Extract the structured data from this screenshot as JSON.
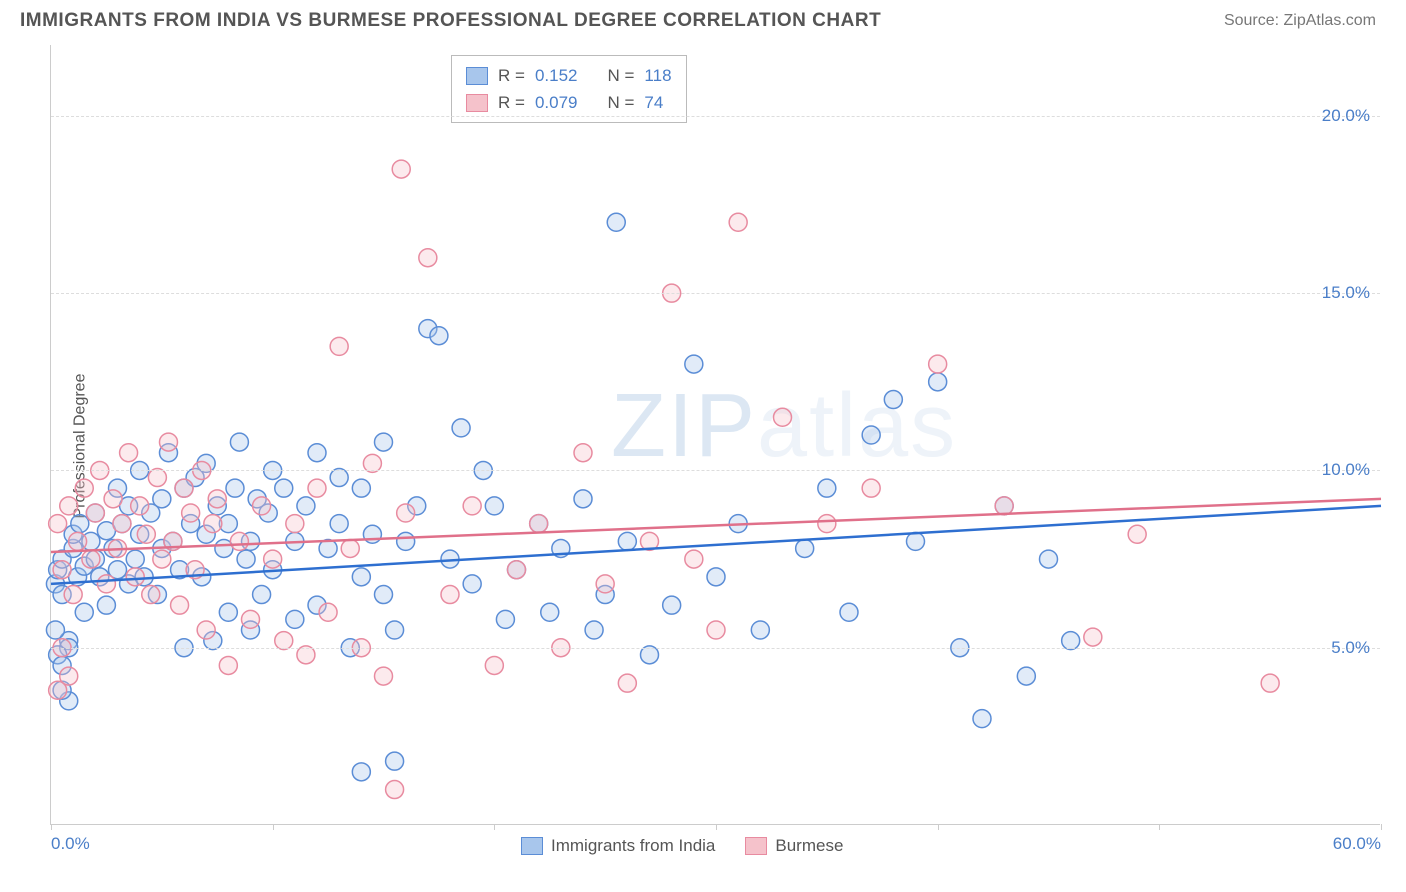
{
  "title": "IMMIGRANTS FROM INDIA VS BURMESE PROFESSIONAL DEGREE CORRELATION CHART",
  "source": "Source: ZipAtlas.com",
  "watermark": "ZIPatlas",
  "ylabel": "Professional Degree",
  "chart": {
    "type": "scatter",
    "xlim": [
      0,
      60
    ],
    "ylim": [
      0,
      22
    ],
    "grid_color": "#dddddd",
    "background_color": "#ffffff",
    "yticks": [
      {
        "value": 5,
        "label": "5.0%",
        "color": "#4a7ec8"
      },
      {
        "value": 10,
        "label": "10.0%",
        "color": "#4a7ec8"
      },
      {
        "value": 15,
        "label": "15.0%",
        "color": "#4a7ec8"
      },
      {
        "value": 20,
        "label": "20.0%",
        "color": "#4a7ec8"
      }
    ],
    "xticks": [
      0,
      10,
      20,
      30,
      40,
      50,
      60
    ],
    "xtick_labels": [
      {
        "value": 0,
        "label": "0.0%",
        "color": "#4a7ec8",
        "pos": "first"
      },
      {
        "value": 60,
        "label": "60.0%",
        "color": "#4a7ec8",
        "pos": "last"
      }
    ],
    "marker_radius": 9,
    "marker_stroke_width": 1.5,
    "marker_fill_opacity": 0.35,
    "line_width": 2.5
  },
  "series": [
    {
      "name": "Immigrants from India",
      "color_fill": "#a8c6ec",
      "color_stroke": "#5b8dd6",
      "line_color": "#2e6fd0",
      "R": "0.152",
      "N": "118",
      "trend": {
        "x1": 0,
        "y1": 6.8,
        "x2": 60,
        "y2": 9.0
      },
      "points": [
        [
          0.2,
          6.8
        ],
        [
          0.3,
          7.2
        ],
        [
          0.5,
          7.5
        ],
        [
          0.5,
          6.5
        ],
        [
          0.8,
          5.2
        ],
        [
          0.8,
          5.0
        ],
        [
          1.0,
          7.8
        ],
        [
          1.0,
          8.2
        ],
        [
          1.2,
          7.0
        ],
        [
          1.3,
          8.5
        ],
        [
          1.5,
          7.3
        ],
        [
          1.5,
          6.0
        ],
        [
          1.8,
          8.0
        ],
        [
          2.0,
          7.5
        ],
        [
          2.0,
          8.8
        ],
        [
          2.2,
          7.0
        ],
        [
          2.5,
          8.3
        ],
        [
          2.5,
          6.2
        ],
        [
          2.8,
          7.8
        ],
        [
          3.0,
          9.5
        ],
        [
          3.0,
          7.2
        ],
        [
          3.2,
          8.5
        ],
        [
          3.5,
          6.8
        ],
        [
          3.5,
          9.0
        ],
        [
          3.8,
          7.5
        ],
        [
          4.0,
          8.2
        ],
        [
          4.0,
          10.0
        ],
        [
          4.2,
          7.0
        ],
        [
          4.5,
          8.8
        ],
        [
          4.8,
          6.5
        ],
        [
          5.0,
          9.2
        ],
        [
          5.0,
          7.8
        ],
        [
          5.3,
          10.5
        ],
        [
          5.5,
          8.0
        ],
        [
          5.8,
          7.2
        ],
        [
          6.0,
          9.5
        ],
        [
          6.0,
          5.0
        ],
        [
          6.3,
          8.5
        ],
        [
          6.5,
          9.8
        ],
        [
          6.8,
          7.0
        ],
        [
          7.0,
          10.2
        ],
        [
          7.0,
          8.2
        ],
        [
          7.3,
          5.2
        ],
        [
          7.5,
          9.0
        ],
        [
          7.8,
          7.8
        ],
        [
          8.0,
          8.5
        ],
        [
          8.0,
          6.0
        ],
        [
          8.3,
          9.5
        ],
        [
          8.5,
          10.8
        ],
        [
          8.8,
          7.5
        ],
        [
          9.0,
          8.0
        ],
        [
          9.0,
          5.5
        ],
        [
          9.3,
          9.2
        ],
        [
          9.5,
          6.5
        ],
        [
          9.8,
          8.8
        ],
        [
          10.0,
          7.2
        ],
        [
          10.0,
          10.0
        ],
        [
          10.5,
          9.5
        ],
        [
          11.0,
          8.0
        ],
        [
          11.0,
          5.8
        ],
        [
          11.5,
          9.0
        ],
        [
          12.0,
          6.2
        ],
        [
          12.0,
          10.5
        ],
        [
          12.5,
          7.8
        ],
        [
          13.0,
          8.5
        ],
        [
          13.0,
          9.8
        ],
        [
          13.5,
          5.0
        ],
        [
          14.0,
          7.0
        ],
        [
          14.0,
          9.5
        ],
        [
          14.5,
          8.2
        ],
        [
          15.0,
          10.8
        ],
        [
          15.0,
          6.5
        ],
        [
          15.5,
          5.5
        ],
        [
          16.0,
          8.0
        ],
        [
          16.5,
          9.0
        ],
        [
          17.0,
          14.0
        ],
        [
          17.5,
          13.8
        ],
        [
          18.0,
          7.5
        ],
        [
          18.5,
          11.2
        ],
        [
          19.0,
          6.8
        ],
        [
          20.0,
          9.0
        ],
        [
          20.5,
          5.8
        ],
        [
          21.0,
          7.2
        ],
        [
          22.0,
          8.5
        ],
        [
          22.5,
          6.0
        ],
        [
          23.0,
          7.8
        ],
        [
          24.0,
          9.2
        ],
        [
          24.5,
          5.5
        ],
        [
          25.0,
          6.5
        ],
        [
          25.5,
          17.0
        ],
        [
          26.0,
          8.0
        ],
        [
          27.0,
          4.8
        ],
        [
          28.0,
          6.2
        ],
        [
          29.0,
          13.0
        ],
        [
          30.0,
          7.0
        ],
        [
          31.0,
          8.5
        ],
        [
          32.0,
          5.5
        ],
        [
          34.0,
          7.8
        ],
        [
          35.0,
          9.5
        ],
        [
          36.0,
          6.0
        ],
        [
          37.0,
          11.0
        ],
        [
          38.0,
          12.0
        ],
        [
          39.0,
          8.0
        ],
        [
          40.0,
          12.5
        ],
        [
          41.0,
          5.0
        ],
        [
          42.0,
          3.0
        ],
        [
          43.0,
          9.0
        ],
        [
          44.0,
          4.2
        ],
        [
          45.0,
          7.5
        ],
        [
          46.0,
          5.2
        ],
        [
          14.0,
          1.5
        ],
        [
          15.5,
          1.8
        ],
        [
          19.5,
          10.0
        ],
        [
          0.2,
          5.5
        ],
        [
          0.3,
          4.8
        ],
        [
          0.5,
          4.5
        ],
        [
          0.8,
          3.5
        ],
        [
          0.5,
          3.8
        ]
      ]
    },
    {
      "name": "Burmese",
      "color_fill": "#f5c2cb",
      "color_stroke": "#e88ba0",
      "line_color": "#e0708a",
      "R": "0.079",
      "N": "74",
      "trend": {
        "x1": 0,
        "y1": 7.7,
        "x2": 60,
        "y2": 9.2
      },
      "points": [
        [
          0.3,
          8.5
        ],
        [
          0.5,
          7.2
        ],
        [
          0.8,
          9.0
        ],
        [
          1.0,
          6.5
        ],
        [
          1.2,
          8.0
        ],
        [
          1.5,
          9.5
        ],
        [
          1.8,
          7.5
        ],
        [
          2.0,
          8.8
        ],
        [
          2.2,
          10.0
        ],
        [
          2.5,
          6.8
        ],
        [
          2.8,
          9.2
        ],
        [
          3.0,
          7.8
        ],
        [
          3.2,
          8.5
        ],
        [
          3.5,
          10.5
        ],
        [
          3.8,
          7.0
        ],
        [
          4.0,
          9.0
        ],
        [
          4.3,
          8.2
        ],
        [
          4.5,
          6.5
        ],
        [
          4.8,
          9.8
        ],
        [
          5.0,
          7.5
        ],
        [
          5.3,
          10.8
        ],
        [
          5.5,
          8.0
        ],
        [
          5.8,
          6.2
        ],
        [
          6.0,
          9.5
        ],
        [
          6.3,
          8.8
        ],
        [
          6.5,
          7.2
        ],
        [
          6.8,
          10.0
        ],
        [
          7.0,
          5.5
        ],
        [
          7.3,
          8.5
        ],
        [
          7.5,
          9.2
        ],
        [
          8.0,
          4.5
        ],
        [
          8.5,
          8.0
        ],
        [
          9.0,
          5.8
        ],
        [
          9.5,
          9.0
        ],
        [
          10.0,
          7.5
        ],
        [
          10.5,
          5.2
        ],
        [
          11.0,
          8.5
        ],
        [
          11.5,
          4.8
        ],
        [
          12.0,
          9.5
        ],
        [
          12.5,
          6.0
        ],
        [
          13.0,
          13.5
        ],
        [
          13.5,
          7.8
        ],
        [
          14.0,
          5.0
        ],
        [
          14.5,
          10.2
        ],
        [
          15.0,
          4.2
        ],
        [
          15.5,
          1.0
        ],
        [
          15.8,
          18.5
        ],
        [
          16.0,
          8.8
        ],
        [
          17.0,
          16.0
        ],
        [
          18.0,
          6.5
        ],
        [
          19.0,
          9.0
        ],
        [
          20.0,
          4.5
        ],
        [
          21.0,
          7.2
        ],
        [
          22.0,
          8.5
        ],
        [
          23.0,
          5.0
        ],
        [
          24.0,
          10.5
        ],
        [
          25.0,
          6.8
        ],
        [
          26.0,
          4.0
        ],
        [
          27.0,
          8.0
        ],
        [
          28.0,
          15.0
        ],
        [
          29.0,
          7.5
        ],
        [
          30.0,
          5.5
        ],
        [
          31.0,
          17.0
        ],
        [
          33.0,
          11.5
        ],
        [
          35.0,
          8.5
        ],
        [
          37.0,
          9.5
        ],
        [
          40.0,
          13.0
        ],
        [
          43.0,
          9.0
        ],
        [
          47.0,
          5.3
        ],
        [
          49.0,
          8.2
        ],
        [
          55.0,
          4.0
        ],
        [
          0.5,
          5.0
        ],
        [
          0.8,
          4.2
        ],
        [
          0.3,
          3.8
        ]
      ]
    }
  ],
  "legend_top": {
    "stat_color": "#4a7ec8"
  },
  "legend_bottom_items": [
    {
      "label": "Immigrants from India",
      "fill": "#a8c6ec",
      "stroke": "#5b8dd6"
    },
    {
      "label": "Burmese",
      "fill": "#f5c2cb",
      "stroke": "#e88ba0"
    }
  ]
}
